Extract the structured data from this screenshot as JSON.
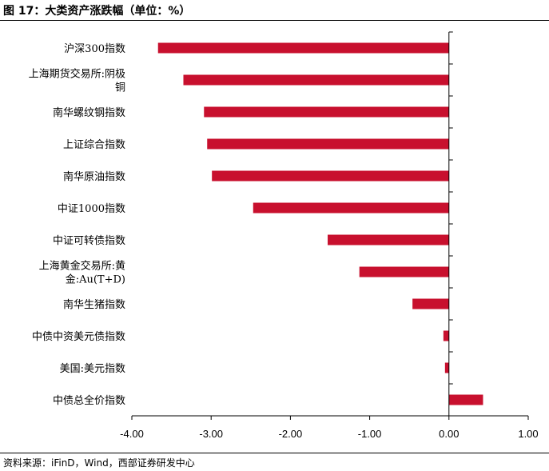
{
  "header": {
    "title": "图 17：大类资产涨跌幅（单位：%）"
  },
  "footer": {
    "source": "资料来源：iFinD，Wind，西部证券研发中心"
  },
  "colors": {
    "bar": "#C8102E",
    "axis": "#000000"
  },
  "chart_data": {
    "type": "bar",
    "orientation": "horizontal",
    "title": "",
    "xlabel": "",
    "ylabel": "",
    "xlim": [
      -4.0,
      1.0
    ],
    "xticks": [
      -4.0,
      -3.0,
      -2.0,
      -1.0,
      0.0,
      1.0
    ],
    "xtick_labels": [
      "-4.00",
      "-3.00",
      "-2.00",
      "-1.00",
      "0.00",
      "1.00"
    ],
    "grid": false,
    "categories": [
      [
        "沪深300指数"
      ],
      [
        "上海期货交易所:阴极",
        "铜"
      ],
      [
        "南华螺纹钢指数"
      ],
      [
        "上证综合指数"
      ],
      [
        "南华原油指数"
      ],
      [
        "中证1000指数"
      ],
      [
        "中证可转债指数"
      ],
      [
        "上海黄金交易所:黄",
        "金:Au(T+D)"
      ],
      [
        "南华生猪指数"
      ],
      [
        "中债中资美元债指数"
      ],
      [
        "美国:美元指数"
      ],
      [
        "中债总全价指数"
      ]
    ],
    "values": [
      -3.67,
      -3.35,
      -3.09,
      -3.05,
      -2.99,
      -2.47,
      -1.53,
      -1.13,
      -0.46,
      -0.07,
      -0.05,
      0.43
    ]
  }
}
